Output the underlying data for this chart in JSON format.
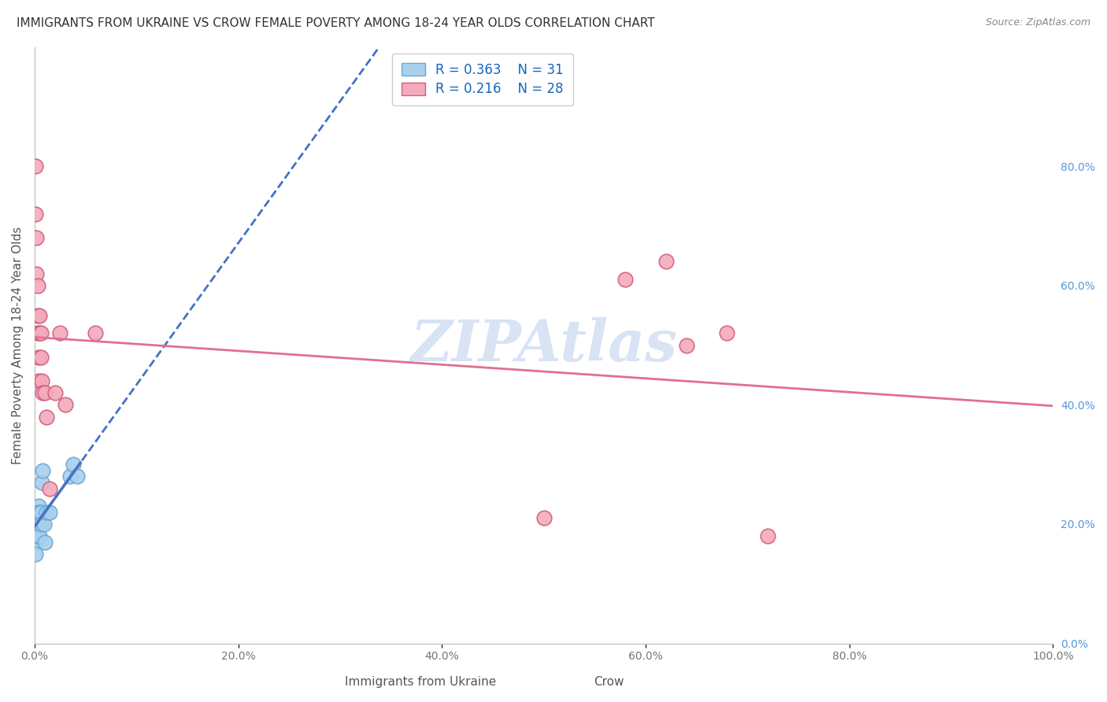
{
  "title": "IMMIGRANTS FROM UKRAINE VS CROW FEMALE POVERTY AMONG 18-24 YEAR OLDS CORRELATION CHART",
  "source": "Source: ZipAtlas.com",
  "ylabel": "Female Poverty Among 18-24 Year Olds",
  "xlim": [
    0,
    1.0
  ],
  "ylim": [
    0,
    1.0
  ],
  "right_yticks": [
    0.0,
    0.2,
    0.4,
    0.6,
    0.8
  ],
  "right_yticklabels": [
    "0.0%",
    "20.0%",
    "40.0%",
    "60.0%",
    "80.0%"
  ],
  "xticks": [
    0.0,
    0.2,
    0.4,
    0.6,
    0.8,
    1.0
  ],
  "xticklabels": [
    "0.0%",
    "20.0%",
    "40.0%",
    "60.0%",
    "80.0%",
    "100.0%"
  ],
  "series": [
    {
      "name": "Immigrants from Ukraine",
      "color": "#A8CFEE",
      "edge_color": "#6AAAD4",
      "trend_color": "#4472C4",
      "trend_style": "--",
      "trend_solid_color": "#2255AA",
      "R": 0.363,
      "N": 31,
      "x": [
        0.001,
        0.001,
        0.001,
        0.001,
        0.001,
        0.002,
        0.002,
        0.002,
        0.002,
        0.003,
        0.003,
        0.003,
        0.003,
        0.003,
        0.004,
        0.004,
        0.004,
        0.005,
        0.005,
        0.005,
        0.006,
        0.006,
        0.007,
        0.008,
        0.009,
        0.01,
        0.012,
        0.015,
        0.035,
        0.038,
        0.042
      ],
      "y": [
        0.22,
        0.2,
        0.18,
        0.17,
        0.15,
        0.22,
        0.21,
        0.2,
        0.19,
        0.22,
        0.21,
        0.2,
        0.19,
        0.18,
        0.23,
        0.22,
        0.21,
        0.22,
        0.2,
        0.18,
        0.22,
        0.2,
        0.27,
        0.29,
        0.2,
        0.17,
        0.22,
        0.22,
        0.28,
        0.3,
        0.28
      ]
    },
    {
      "name": "Crow",
      "color": "#F4AABB",
      "edge_color": "#D06080",
      "trend_color": "#E07090",
      "trend_style": "-",
      "R": 0.216,
      "N": 28,
      "x": [
        0.001,
        0.001,
        0.002,
        0.002,
        0.003,
        0.003,
        0.003,
        0.004,
        0.004,
        0.005,
        0.005,
        0.006,
        0.006,
        0.007,
        0.008,
        0.01,
        0.012,
        0.015,
        0.02,
        0.025,
        0.03,
        0.06,
        0.5,
        0.58,
        0.62,
        0.64,
        0.68,
        0.72
      ],
      "y": [
        0.8,
        0.72,
        0.68,
        0.62,
        0.6,
        0.55,
        0.52,
        0.48,
        0.44,
        0.55,
        0.52,
        0.52,
        0.48,
        0.44,
        0.42,
        0.42,
        0.38,
        0.26,
        0.42,
        0.52,
        0.4,
        0.52,
        0.21,
        0.61,
        0.64,
        0.5,
        0.52,
        0.18
      ]
    }
  ],
  "watermark": "ZIPAtlas",
  "watermark_color": "#C8D8F0",
  "background_color": "#FFFFFF",
  "grid_color": "#E0E8F0",
  "legend_R_color": "#1565C0",
  "title_fontsize": 11,
  "axis_label_fontsize": 11,
  "tick_fontsize": 10,
  "legend_fontsize": 12,
  "bottom_labels": [
    "Immigrants from Ukraine",
    "Crow"
  ]
}
